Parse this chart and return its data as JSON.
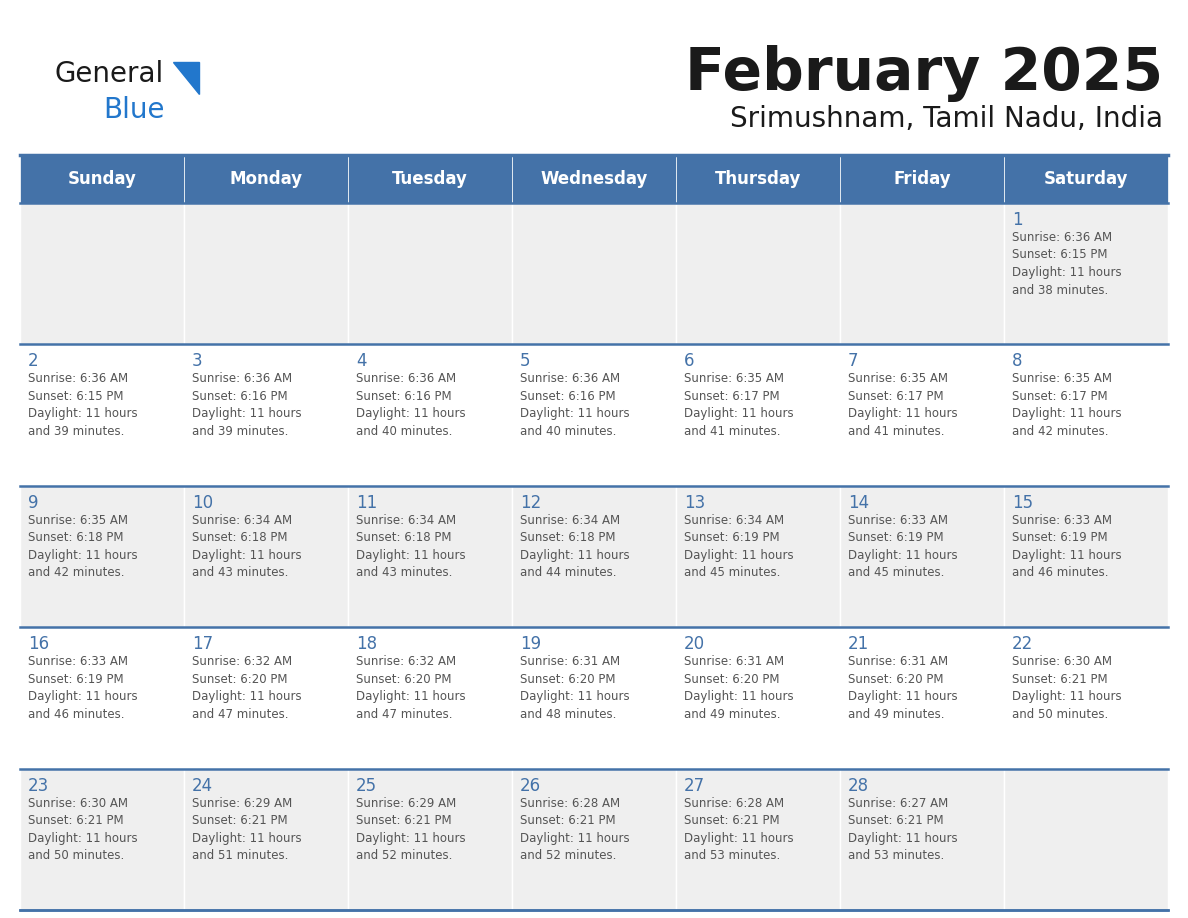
{
  "title": "February 2025",
  "subtitle": "Srimushnam, Tamil Nadu, India",
  "header_color": "#4472a8",
  "header_text_color": "#ffffff",
  "cell_bg_odd": "#efefef",
  "cell_bg_even": "#ffffff",
  "day_number_color": "#4472a8",
  "info_text_color": "#555555",
  "border_color": "#4472a8",
  "days_of_week": [
    "Sunday",
    "Monday",
    "Tuesday",
    "Wednesday",
    "Thursday",
    "Friday",
    "Saturday"
  ],
  "weeks": [
    [
      {
        "day": "",
        "info": ""
      },
      {
        "day": "",
        "info": ""
      },
      {
        "day": "",
        "info": ""
      },
      {
        "day": "",
        "info": ""
      },
      {
        "day": "",
        "info": ""
      },
      {
        "day": "",
        "info": ""
      },
      {
        "day": "1",
        "info": "Sunrise: 6:36 AM\nSunset: 6:15 PM\nDaylight: 11 hours\nand 38 minutes."
      }
    ],
    [
      {
        "day": "2",
        "info": "Sunrise: 6:36 AM\nSunset: 6:15 PM\nDaylight: 11 hours\nand 39 minutes."
      },
      {
        "day": "3",
        "info": "Sunrise: 6:36 AM\nSunset: 6:16 PM\nDaylight: 11 hours\nand 39 minutes."
      },
      {
        "day": "4",
        "info": "Sunrise: 6:36 AM\nSunset: 6:16 PM\nDaylight: 11 hours\nand 40 minutes."
      },
      {
        "day": "5",
        "info": "Sunrise: 6:36 AM\nSunset: 6:16 PM\nDaylight: 11 hours\nand 40 minutes."
      },
      {
        "day": "6",
        "info": "Sunrise: 6:35 AM\nSunset: 6:17 PM\nDaylight: 11 hours\nand 41 minutes."
      },
      {
        "day": "7",
        "info": "Sunrise: 6:35 AM\nSunset: 6:17 PM\nDaylight: 11 hours\nand 41 minutes."
      },
      {
        "day": "8",
        "info": "Sunrise: 6:35 AM\nSunset: 6:17 PM\nDaylight: 11 hours\nand 42 minutes."
      }
    ],
    [
      {
        "day": "9",
        "info": "Sunrise: 6:35 AM\nSunset: 6:18 PM\nDaylight: 11 hours\nand 42 minutes."
      },
      {
        "day": "10",
        "info": "Sunrise: 6:34 AM\nSunset: 6:18 PM\nDaylight: 11 hours\nand 43 minutes."
      },
      {
        "day": "11",
        "info": "Sunrise: 6:34 AM\nSunset: 6:18 PM\nDaylight: 11 hours\nand 43 minutes."
      },
      {
        "day": "12",
        "info": "Sunrise: 6:34 AM\nSunset: 6:18 PM\nDaylight: 11 hours\nand 44 minutes."
      },
      {
        "day": "13",
        "info": "Sunrise: 6:34 AM\nSunset: 6:19 PM\nDaylight: 11 hours\nand 45 minutes."
      },
      {
        "day": "14",
        "info": "Sunrise: 6:33 AM\nSunset: 6:19 PM\nDaylight: 11 hours\nand 45 minutes."
      },
      {
        "day": "15",
        "info": "Sunrise: 6:33 AM\nSunset: 6:19 PM\nDaylight: 11 hours\nand 46 minutes."
      }
    ],
    [
      {
        "day": "16",
        "info": "Sunrise: 6:33 AM\nSunset: 6:19 PM\nDaylight: 11 hours\nand 46 minutes."
      },
      {
        "day": "17",
        "info": "Sunrise: 6:32 AM\nSunset: 6:20 PM\nDaylight: 11 hours\nand 47 minutes."
      },
      {
        "day": "18",
        "info": "Sunrise: 6:32 AM\nSunset: 6:20 PM\nDaylight: 11 hours\nand 47 minutes."
      },
      {
        "day": "19",
        "info": "Sunrise: 6:31 AM\nSunset: 6:20 PM\nDaylight: 11 hours\nand 48 minutes."
      },
      {
        "day": "20",
        "info": "Sunrise: 6:31 AM\nSunset: 6:20 PM\nDaylight: 11 hours\nand 49 minutes."
      },
      {
        "day": "21",
        "info": "Sunrise: 6:31 AM\nSunset: 6:20 PM\nDaylight: 11 hours\nand 49 minutes."
      },
      {
        "day": "22",
        "info": "Sunrise: 6:30 AM\nSunset: 6:21 PM\nDaylight: 11 hours\nand 50 minutes."
      }
    ],
    [
      {
        "day": "23",
        "info": "Sunrise: 6:30 AM\nSunset: 6:21 PM\nDaylight: 11 hours\nand 50 minutes."
      },
      {
        "day": "24",
        "info": "Sunrise: 6:29 AM\nSunset: 6:21 PM\nDaylight: 11 hours\nand 51 minutes."
      },
      {
        "day": "25",
        "info": "Sunrise: 6:29 AM\nSunset: 6:21 PM\nDaylight: 11 hours\nand 52 minutes."
      },
      {
        "day": "26",
        "info": "Sunrise: 6:28 AM\nSunset: 6:21 PM\nDaylight: 11 hours\nand 52 minutes."
      },
      {
        "day": "27",
        "info": "Sunrise: 6:28 AM\nSunset: 6:21 PM\nDaylight: 11 hours\nand 53 minutes."
      },
      {
        "day": "28",
        "info": "Sunrise: 6:27 AM\nSunset: 6:21 PM\nDaylight: 11 hours\nand 53 minutes."
      },
      {
        "day": "",
        "info": ""
      }
    ]
  ],
  "logo_text_general": "General",
  "logo_text_blue": "Blue",
  "logo_general_color": "#1a1a1a",
  "logo_blue_color": "#2277cc",
  "logo_triangle_color": "#2277cc",
  "fig_width": 11.88,
  "fig_height": 9.18,
  "dpi": 100
}
